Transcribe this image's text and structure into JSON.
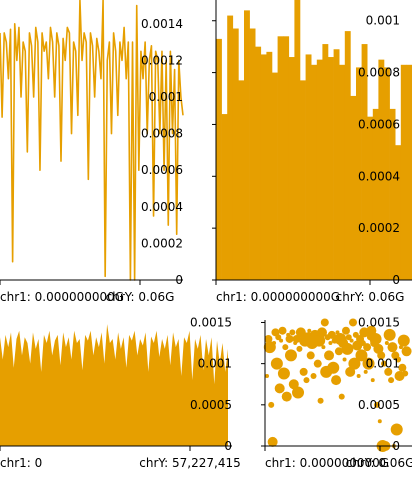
{
  "colors": {
    "series": "#e69f00",
    "axis": "#000000",
    "background": "#ffffff"
  },
  "chart_data": [
    {
      "type": "line",
      "title": "",
      "xlabel": "",
      "ylabel": "",
      "x_tick_labels": [
        "chr1: 0.000000000G",
        "chrY: 0.06G"
      ],
      "y_tick_labels": [
        "0",
        "0.0002",
        "0.0004",
        "0.0006",
        "0.0008",
        "0.001",
        "0.0012",
        "0.0014"
      ],
      "y_ticks": [
        0,
        0.0002,
        0.0004,
        0.0006,
        0.0008,
        0.001,
        0.0012,
        0.0014
      ],
      "ylim": [
        0,
        0.00153
      ],
      "grid": false,
      "series": [
        {
          "values": [
            0.00135,
            0.00089,
            0.00135,
            0.0013,
            0.0011,
            0.00137,
            0.0001,
            0.0014,
            0.0012,
            0.00138,
            0.001,
            0.0013,
            0.00125,
            0.0007,
            0.00135,
            0.00128,
            0.001,
            0.00138,
            0.0013,
            0.0006,
            0.00135,
            0.00125,
            0.0013,
            0.0011,
            0.00138,
            0.0013,
            0.001,
            0.00135,
            0.00128,
            0.00065,
            0.00132,
            0.0012,
            0.00138,
            0.00135,
            0.0008,
            0.0013,
            0.00125,
            0.0009,
            0.00153,
            0.0012,
            0.00135,
            0.0013,
            0.00055,
            0.00135,
            0.00128,
            0.001,
            0.00132,
            0.00125,
            0.0011,
            0.00153,
            2e-05,
            0.0012,
            0.0013,
            0.0008,
            0.00135,
            0.00125,
            0.0009,
            0.0013,
            0.0012,
            0.00138,
            0.0011,
            0.0013,
            0.0,
            0.0013,
            0.0,
            0.0015,
            0.0006,
            0.00125,
            0.0011,
            0.0013,
            0.0008,
            0.0012,
            0.00128,
            0.00035,
            0.00125,
            0.0012,
            0.0008,
            0.00125,
            0.0006,
            0.0012,
            0.0003,
            0.00125,
            0.0008,
            0.00115,
            0.00025,
            0.0012,
            0.001,
            0.0009
          ]
        }
      ]
    },
    {
      "type": "bar",
      "title": "",
      "xlabel": "",
      "ylabel": "",
      "x_tick_labels": [
        "chr1: 0.000000000G",
        "chrY: 0.06G"
      ],
      "y_tick_labels": [
        "0",
        "0.0002",
        "0.0004",
        "0.0006",
        "0.0008",
        "0.001"
      ],
      "y_ticks": [
        0,
        0.0002,
        0.0004,
        0.0006,
        0.0008,
        0.001
      ],
      "ylim": [
        0,
        0.00108
      ],
      "grid": false,
      "series": [
        {
          "values": [
            0.00093,
            0.00064,
            0.00102,
            0.00097,
            0.00077,
            0.00104,
            0.00097,
            0.0009,
            0.00087,
            0.00088,
            0.0008,
            0.00094,
            0.00094,
            0.00086,
            0.00108,
            0.00077,
            0.00087,
            0.00083,
            0.00085,
            0.00091,
            0.00086,
            0.00089,
            0.00083,
            0.00096,
            0.00071,
            0.00082,
            0.00091,
            0.00063,
            0.00066,
            0.00085,
            0.00082,
            0.00066,
            0.00052,
            0.00083,
            0.00083
          ]
        }
      ]
    },
    {
      "type": "area",
      "title": "",
      "xlabel": "",
      "ylabel": "",
      "x_tick_labels": [
        "chr1: 0",
        "chrY: 57,227,415"
      ],
      "y_tick_labels": [
        "0",
        "0.0005",
        "0.001",
        "0.0015"
      ],
      "y_ticks": [
        0,
        0.0005,
        0.001,
        0.0015
      ],
      "ylim": [
        0,
        0.00153
      ],
      "grid": false,
      "series": [
        {
          "values": [
            0.00132,
            0.00105,
            0.00135,
            0.0012,
            0.00138,
            0.00095,
            0.0013,
            0.0014,
            0.0011,
            0.00132,
            0.00125,
            0.001,
            0.00138,
            0.00118,
            0.0013,
            0.0009,
            0.00135,
            0.00125,
            0.0014,
            0.0011,
            0.00128,
            0.00135,
            0.00098,
            0.00138,
            0.0012,
            0.00132,
            0.00105,
            0.0014,
            0.00125,
            0.0013,
            0.00092,
            0.00135,
            0.00128,
            0.0014,
            0.0011,
            0.00132,
            0.0012,
            0.00138,
            0.001,
            0.00148,
            0.00125,
            0.0013,
            0.00105,
            0.00138,
            0.00118,
            0.00132,
            0.00095,
            0.00135,
            0.00128,
            0.0014,
            0.0011,
            0.0013,
            0.00122,
            0.00138,
            0.0009,
            0.00133,
            0.00125,
            0.0014,
            0.00108,
            0.0013,
            0.00118,
            0.00135,
            0.00098,
            0.00138,
            0.0012,
            0.0013,
            0.00085,
            0.00132,
            0.00125,
            0.0014,
            0.0008,
            0.0013,
            0.00118,
            0.00135,
            0.00092,
            0.0013,
            0.0011,
            0.00132,
            0.00075,
            0.00128,
            0.001,
            0.00125,
            0.0009,
            0.00118
          ]
        }
      ]
    },
    {
      "type": "scatter",
      "title": "",
      "xlabel": "",
      "ylabel": "",
      "x_tick_labels": [
        "chr1: 0.000000000G",
        "chrY: 0.06G"
      ],
      "y_tick_labels": [
        "0",
        "0.0005",
        "0.001",
        "0.0015"
      ],
      "y_ticks": [
        0,
        0.0005,
        0.001,
        0.0015
      ],
      "xlim": [
        0,
        1
      ],
      "ylim": [
        0,
        0.00153
      ],
      "grid": false,
      "series": [
        {
          "points": [
            [
              0.0,
              0.00085
            ],
            [
              0.01,
              0.0013
            ],
            [
              0.02,
              0.0012
            ],
            [
              0.03,
              0.0005
            ],
            [
              0.04,
              5e-05
            ],
            [
              0.05,
              0.00125
            ],
            [
              0.06,
              0.00138
            ],
            [
              0.07,
              0.001
            ],
            [
              0.08,
              0.00132
            ],
            [
              0.09,
              0.0007
            ],
            [
              0.1,
              0.00128
            ],
            [
              0.11,
              0.0014
            ],
            [
              0.12,
              0.00088
            ],
            [
              0.13,
              0.0012
            ],
            [
              0.14,
              0.0006
            ],
            [
              0.15,
              0.00135
            ],
            [
              0.16,
              0.0013
            ],
            [
              0.17,
              0.0011
            ],
            [
              0.18,
              0.00138
            ],
            [
              0.19,
              0.00075
            ],
            [
              0.2,
              0.00125
            ],
            [
              0.21,
              0.0013
            ],
            [
              0.22,
              0.00065
            ],
            [
              0.23,
              0.00118
            ],
            [
              0.24,
              0.00138
            ],
            [
              0.25,
              0.00135
            ],
            [
              0.26,
              0.0009
            ],
            [
              0.27,
              0.00128
            ],
            [
              0.28,
              0.0008
            ],
            [
              0.29,
              0.00132
            ],
            [
              0.3,
              0.0014
            ],
            [
              0.31,
              0.0011
            ],
            [
              0.32,
              0.00125
            ],
            [
              0.33,
              0.00085
            ],
            [
              0.34,
              0.00135
            ],
            [
              0.35,
              0.0013
            ],
            [
              0.36,
              0.001
            ],
            [
              0.37,
              0.00128
            ],
            [
              0.38,
              0.00055
            ],
            [
              0.39,
              0.00138
            ],
            [
              0.4,
              0.0012
            ],
            [
              0.41,
              0.0015
            ],
            [
              0.42,
              0.0009
            ],
            [
              0.43,
              0.00132
            ],
            [
              0.44,
              0.0011
            ],
            [
              0.45,
              0.00125
            ],
            [
              0.46,
              0.00135
            ],
            [
              0.47,
              0.00095
            ],
            [
              0.48,
              0.00128
            ],
            [
              0.49,
              0.0008
            ],
            [
              0.5,
              0.00138
            ],
            [
              0.51,
              0.00115
            ],
            [
              0.52,
              0.0013
            ],
            [
              0.53,
              0.0006
            ],
            [
              0.54,
              0.00125
            ],
            [
              0.55,
              0.00105
            ],
            [
              0.56,
              0.0014
            ],
            [
              0.57,
              0.00118
            ],
            [
              0.58,
              0.00132
            ],
            [
              0.59,
              0.0009
            ],
            [
              0.6,
              0.00128
            ],
            [
              0.61,
              0.0015
            ],
            [
              0.62,
              0.001
            ],
            [
              0.63,
              0.00135
            ],
            [
              0.64,
              0.00122
            ],
            [
              0.65,
              0.00085
            ],
            [
              0.66,
              0.0013
            ],
            [
              0.67,
              0.0011
            ],
            [
              0.68,
              0.00125
            ],
            [
              0.69,
              0.00138
            ],
            [
              0.7,
              0.0009
            ],
            [
              0.71,
              0.0012
            ],
            [
              0.72,
              0.001
            ],
            [
              0.73,
              0.00132
            ],
            [
              0.74,
              0.0014
            ],
            [
              0.75,
              0.0008
            ],
            [
              0.76,
              0.00125
            ],
            [
              0.77,
              0.0013
            ],
            [
              0.78,
              0.0005
            ],
            [
              0.79,
              0.00118
            ],
            [
              0.8,
              0.0003
            ],
            [
              0.81,
              0.0011
            ],
            [
              0.82,
              0.0
            ],
            [
              0.83,
              0.001
            ],
            [
              0.84,
              0.0
            ],
            [
              0.85,
              0.00125
            ],
            [
              0.86,
              0.0009
            ],
            [
              0.87,
              0.00135
            ],
            [
              0.88,
              0.0008
            ],
            [
              0.89,
              0.0012
            ],
            [
              0.9,
              0.0
            ],
            [
              0.91,
              0.0011
            ],
            [
              0.92,
              0.0002
            ],
            [
              0.93,
              0.00105
            ],
            [
              0.94,
              0.00085
            ],
            [
              0.95,
              0.0012
            ],
            [
              0.96,
              0.00095
            ],
            [
              0.97,
              0.00128
            ],
            [
              0.98,
              0.00088
            ],
            [
              0.99,
              0.00115
            ]
          ]
        }
      ]
    }
  ]
}
